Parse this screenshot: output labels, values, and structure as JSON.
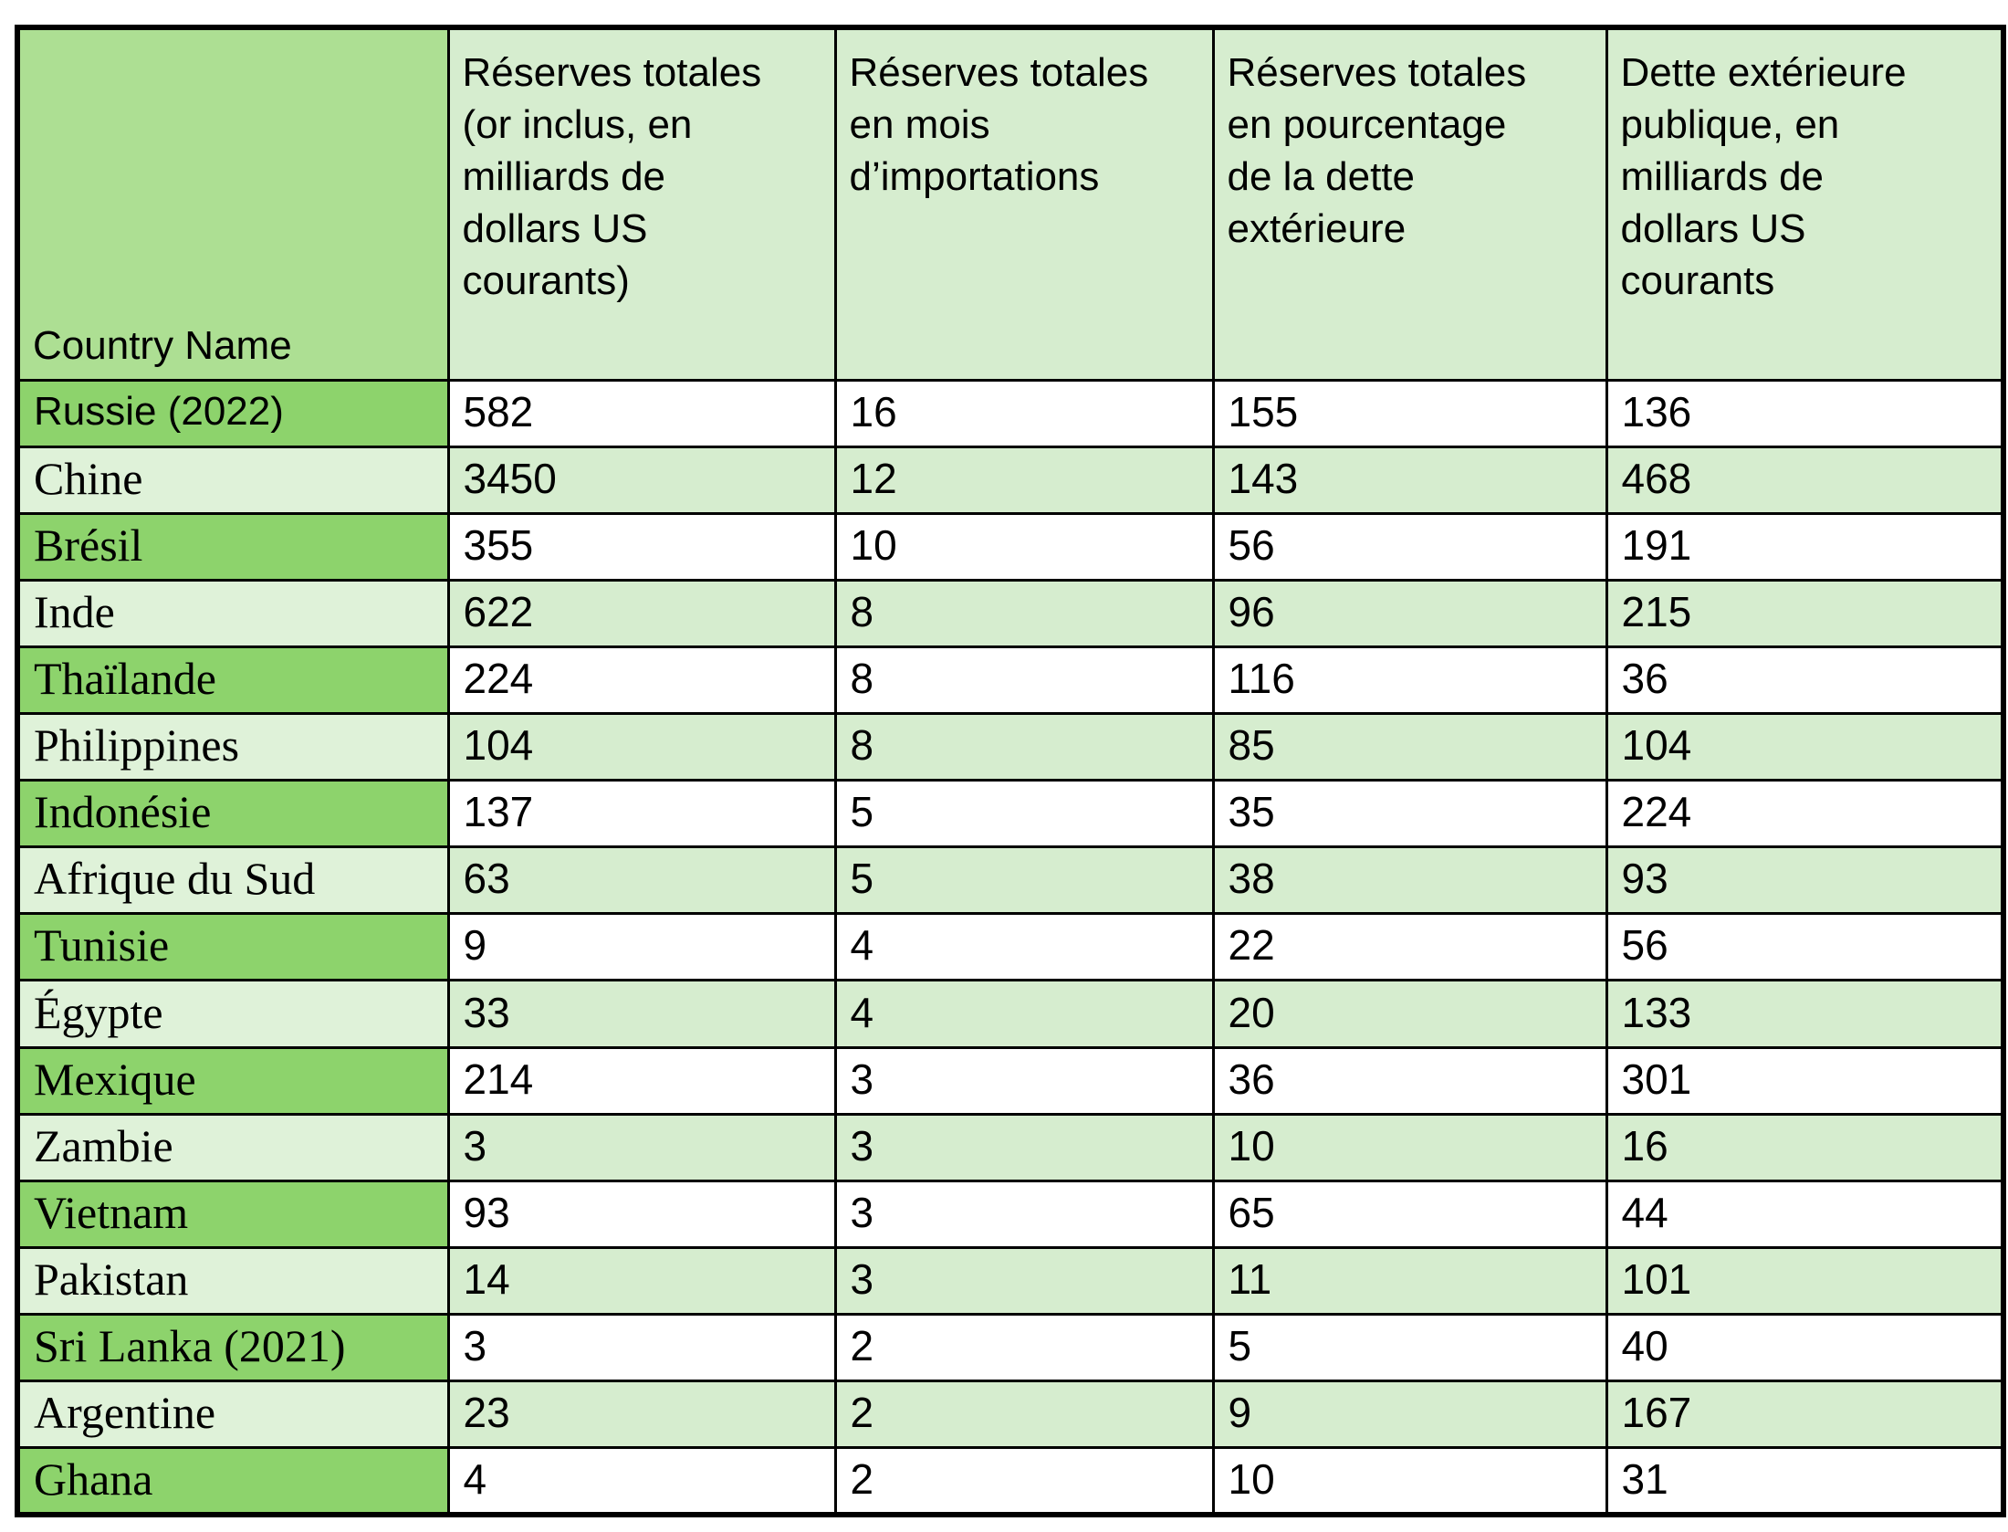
{
  "table": {
    "columns": [
      {
        "label": "Country Name"
      },
      {
        "label": "Réserves totales\n(or inclus, en\nmilliards de\ndollars US\ncourants)"
      },
      {
        "label": "Réserves totales\nen mois\nd’importations"
      },
      {
        "label": "Réserves totales\nen pourcentage\nde la dette\nextérieure"
      },
      {
        "label": "Dette extérieure\npublique, en\nmilliards de\ndollars US\ncourants"
      }
    ],
    "rows": [
      {
        "country": "Russie (2022)",
        "values": [
          582,
          16,
          155,
          136
        ]
      },
      {
        "country": "Chine",
        "values": [
          3450,
          12,
          143,
          468
        ]
      },
      {
        "country": "Brésil",
        "values": [
          355,
          10,
          56,
          191
        ]
      },
      {
        "country": "Inde",
        "values": [
          622,
          8,
          96,
          215
        ]
      },
      {
        "country": "Thaïlande",
        "values": [
          224,
          8,
          116,
          36
        ]
      },
      {
        "country": "Philippines",
        "values": [
          104,
          8,
          85,
          104
        ]
      },
      {
        "country": "Indonésie",
        "values": [
          137,
          5,
          35,
          224
        ]
      },
      {
        "country": "Afrique du Sud",
        "values": [
          63,
          5,
          38,
          93
        ]
      },
      {
        "country": "Tunisie",
        "values": [
          9,
          4,
          22,
          56
        ]
      },
      {
        "country": "Égypte",
        "values": [
          33,
          4,
          20,
          133
        ]
      },
      {
        "country": "Mexique",
        "values": [
          214,
          3,
          36,
          301
        ]
      },
      {
        "country": "Zambie",
        "values": [
          3,
          3,
          10,
          16
        ]
      },
      {
        "country": "Vietnam",
        "values": [
          93,
          3,
          65,
          44
        ]
      },
      {
        "country": "Pakistan",
        "values": [
          14,
          3,
          11,
          101
        ]
      },
      {
        "country": "Sri Lanka (2021)",
        "values": [
          3,
          2,
          5,
          40
        ]
      },
      {
        "country": "Argentine",
        "values": [
          23,
          2,
          9,
          167
        ]
      },
      {
        "country": "Ghana",
        "values": [
          4,
          2,
          10,
          31
        ]
      }
    ]
  },
  "colors": {
    "border": "#000000",
    "text": "#000000",
    "header_country_bg": "#ADDF93",
    "header_bg": "#D6EDCF",
    "country_dark_bg": "#8DD36C",
    "country_light_bg": "#DFF2D9",
    "row_light_bg": "#D6EDCF",
    "row_white_bg": "#FFFFFF"
  }
}
